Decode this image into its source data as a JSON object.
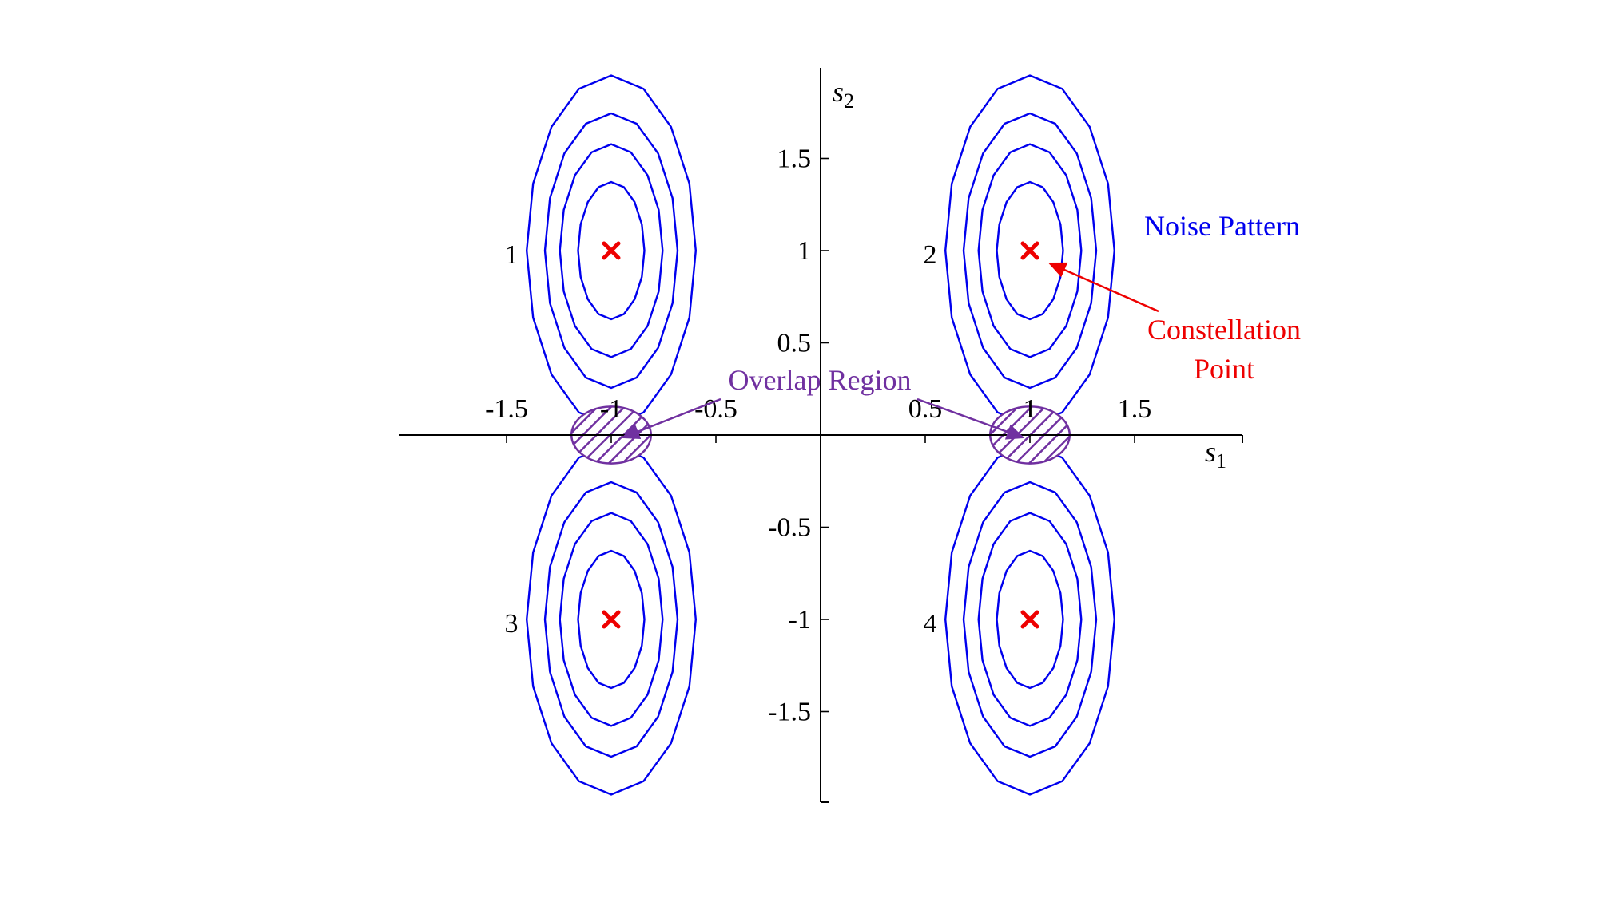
{
  "chart_data": {
    "type": "scatter",
    "title": "",
    "xlabel": "s",
    "xlabel_sub": "1",
    "ylabel": "s",
    "ylabel_sub": "2",
    "xlim": [
      -2,
      2
    ],
    "ylim": [
      -2,
      2
    ],
    "xticks": [
      -1.5,
      -1,
      -0.5,
      0.5,
      1,
      1.5
    ],
    "xtick_labels": [
      "-1.5",
      "-1",
      "-0.5",
      "0.5",
      "1",
      "1.5"
    ],
    "yticks": [
      1.5,
      1,
      0.5,
      -0.5,
      -1,
      -1.5
    ],
    "ytick_labels": [
      "1.5",
      "1",
      "0.5",
      "-0.5",
      "-1",
      "-1.5"
    ],
    "constellation_points": [
      {
        "label": "1",
        "x": -1,
        "y": 1
      },
      {
        "label": "2",
        "x": 1,
        "y": 1
      },
      {
        "label": "3",
        "x": -1,
        "y": -1
      },
      {
        "label": "4",
        "x": 1,
        "y": -1
      }
    ],
    "noise_contours": {
      "center_sigma_x": 0.22,
      "center_sigma_y": 0.38,
      "levels": [
        0.4,
        0.6,
        0.8,
        0.95
      ]
    },
    "overlap_regions": [
      {
        "x": -1,
        "y": 0,
        "rx": 0.19,
        "ry": 0.07
      },
      {
        "x": 1,
        "y": 0,
        "rx": 0.19,
        "ry": 0.07
      }
    ],
    "annotations": {
      "noise_pattern": "Noise Pattern",
      "constellation_point_line1": "Constellation",
      "constellation_point_line2": "Point",
      "overlap_region": "Overlap Region"
    },
    "colors": {
      "contour": "#0000ee",
      "point": "#ee0000",
      "overlap": "#7030a0"
    }
  }
}
